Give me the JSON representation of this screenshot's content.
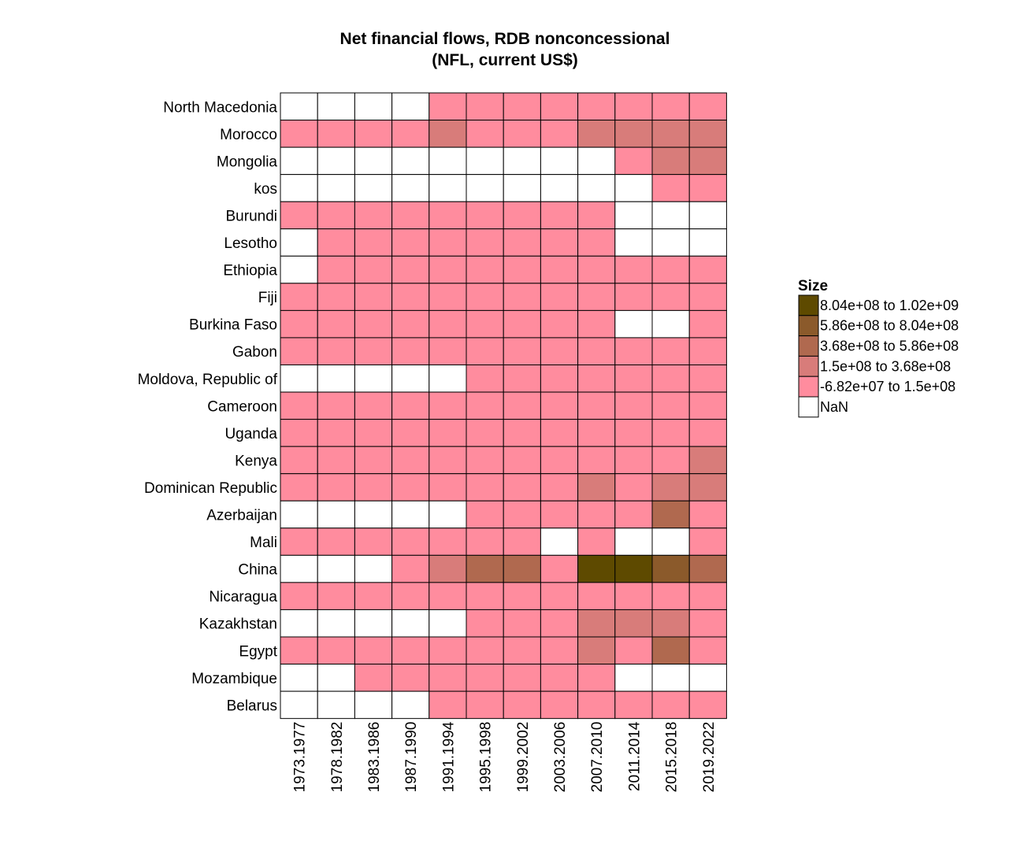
{
  "chart_data": {
    "type": "heatmap",
    "title": [
      "Net financial flows, RDB nonconcessional",
      "(NFL, current US$)"
    ],
    "columns": [
      "1973.1977",
      "1978.1982",
      "1983.1986",
      "1987.1990",
      "1991.1994",
      "1995.1998",
      "1999.2002",
      "2003.2006",
      "2007.2010",
      "2011.2014",
      "2015.2018",
      "2019.2022"
    ],
    "rows": [
      "North Macedonia",
      "Morocco",
      "Mongolia",
      "kos",
      "Burundi",
      "Lesotho",
      "Ethiopia",
      "Fiji",
      "Burkina Faso",
      "Gabon",
      "Moldova, Republic of",
      "Cameroon",
      "Uganda",
      "Kenya",
      "Dominican Republic",
      "Azerbaijan",
      "Mali",
      "China",
      "Nicaragua",
      "Kazakhstan",
      "Egypt",
      "Mozambique",
      "Belarus"
    ],
    "legend": {
      "title": "Size",
      "placement": "right",
      "bins": [
        {
          "label": "8.04e+08 to 1.02e+09",
          "color": "#5E4A00"
        },
        {
          "label": "5.86e+08 to 8.04e+08",
          "color": "#8B5A2B"
        },
        {
          "label": "3.68e+08 to 5.86e+08",
          "color": "#B0694F"
        },
        {
          "label": "1.5e+08 to 3.68e+08",
          "color": "#D87C7A"
        },
        {
          "label": "-6.82e+07 to 1.5e+08",
          "color": "#FF8C9E"
        },
        {
          "label": "NaN",
          "color": "#FFFFFF"
        }
      ]
    },
    "cells_note": "bin index per cell: 0=8.04e+08 to 1.02e+09, 1=5.86e+08 to 8.04e+08, 2=3.68e+08 to 5.86e+08, 3=1.5e+08 to 3.68e+08, 4=-6.82e+07 to 1.5e+08, 5=NaN",
    "cells": [
      [
        5,
        5,
        5,
        5,
        4,
        4,
        4,
        4,
        4,
        4,
        4,
        4
      ],
      [
        4,
        4,
        4,
        4,
        3,
        4,
        4,
        4,
        3,
        3,
        3,
        3
      ],
      [
        5,
        5,
        5,
        5,
        5,
        5,
        5,
        5,
        5,
        4,
        3,
        3
      ],
      [
        5,
        5,
        5,
        5,
        5,
        5,
        5,
        5,
        5,
        5,
        4,
        4
      ],
      [
        4,
        4,
        4,
        4,
        4,
        4,
        4,
        4,
        4,
        5,
        5,
        5
      ],
      [
        5,
        4,
        4,
        4,
        4,
        4,
        4,
        4,
        4,
        5,
        5,
        5
      ],
      [
        5,
        4,
        4,
        4,
        4,
        4,
        4,
        4,
        4,
        4,
        4,
        4
      ],
      [
        4,
        4,
        4,
        4,
        4,
        4,
        4,
        4,
        4,
        4,
        4,
        4
      ],
      [
        4,
        4,
        4,
        4,
        4,
        4,
        4,
        4,
        4,
        5,
        5,
        4
      ],
      [
        4,
        4,
        4,
        4,
        4,
        4,
        4,
        4,
        4,
        4,
        4,
        4
      ],
      [
        5,
        5,
        5,
        5,
        5,
        4,
        4,
        4,
        4,
        4,
        4,
        4
      ],
      [
        4,
        4,
        4,
        4,
        4,
        4,
        4,
        4,
        4,
        4,
        4,
        4
      ],
      [
        4,
        4,
        4,
        4,
        4,
        4,
        4,
        4,
        4,
        4,
        4,
        4
      ],
      [
        4,
        4,
        4,
        4,
        4,
        4,
        4,
        4,
        4,
        4,
        4,
        3
      ],
      [
        4,
        4,
        4,
        4,
        4,
        4,
        4,
        4,
        3,
        4,
        3,
        3
      ],
      [
        5,
        5,
        5,
        5,
        5,
        4,
        4,
        4,
        4,
        4,
        2,
        4
      ],
      [
        4,
        4,
        4,
        4,
        4,
        4,
        4,
        5,
        4,
        5,
        5,
        4
      ],
      [
        5,
        5,
        5,
        4,
        3,
        2,
        2,
        4,
        0,
        0,
        1,
        2
      ],
      [
        4,
        4,
        4,
        4,
        4,
        4,
        4,
        4,
        4,
        4,
        4,
        4
      ],
      [
        5,
        5,
        5,
        5,
        5,
        4,
        4,
        4,
        3,
        3,
        3,
        4
      ],
      [
        4,
        4,
        4,
        4,
        4,
        4,
        4,
        4,
        3,
        4,
        2,
        4
      ],
      [
        5,
        5,
        4,
        4,
        4,
        4,
        4,
        4,
        4,
        5,
        5,
        5
      ],
      [
        5,
        5,
        5,
        5,
        4,
        4,
        4,
        4,
        4,
        4,
        4,
        4
      ]
    ]
  }
}
